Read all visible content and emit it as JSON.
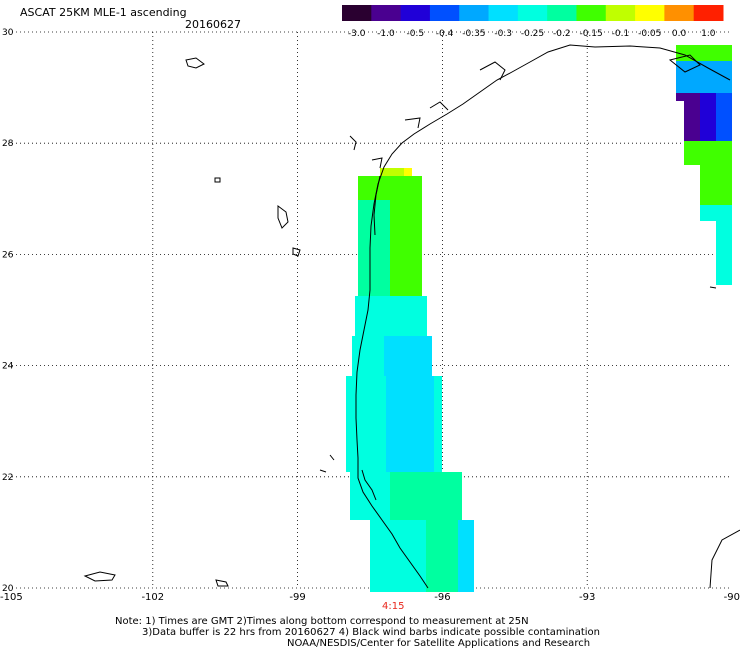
{
  "title": "ASCAT 25KM MLE-1 ascending",
  "date": "20160627",
  "colorbar": {
    "labels": [
      "-3.0",
      "-1.0",
      "-0.5",
      "-0.4",
      "-0.35",
      "-0.3",
      "-0.25",
      "-0.2",
      "-0.15",
      "-0.1",
      "-0.05",
      "0.0",
      "1.0"
    ],
    "colors": [
      "#2a0030",
      "#4a0090",
      "#2000d8",
      "#0050ff",
      "#00a8ff",
      "#00e0ff",
      "#00ffe0",
      "#00ffa0",
      "#40ff00",
      "#c0ff00",
      "#ffff00",
      "#ff9000",
      "#ff2000"
    ]
  },
  "map": {
    "lon_range": [
      -105,
      -90
    ],
    "lat_range": [
      20,
      30
    ],
    "lat_ticks": [
      "30",
      "28",
      "26",
      "24",
      "22",
      "20"
    ],
    "lon_ticks": [
      "-105",
      "-102",
      "-99",
      "-96",
      "-93",
      "-90"
    ]
  },
  "time_label": "4:15",
  "notes": {
    "line1": "Note: 1) Times are GMT 2)Times along bottom correspond to measurement at 25N",
    "line2": "3)Data buffer is 22 hrs from 20160627 4) Black wind barbs indicate possible contamination",
    "line3": "NOAA/NESDIS/Center for Satellite Applications and Research"
  }
}
